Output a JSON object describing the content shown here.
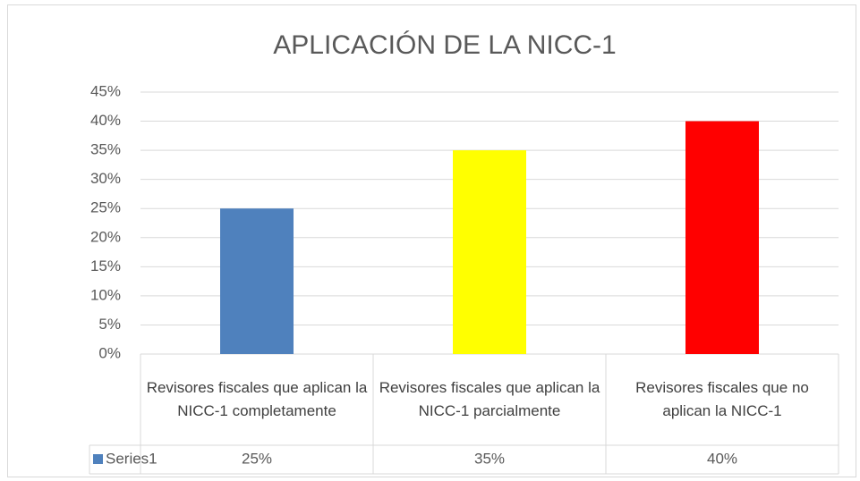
{
  "chart_data": {
    "type": "bar",
    "title": "APLICACIÓN DE LA NICC-1",
    "categories": [
      "Revisores fiscales que aplican la NICC-1 completamente",
      "Revisores fiscales que aplican la NICC-1 parcialmente",
      "Revisores fiscales que no aplican la NICC-1"
    ],
    "series": [
      {
        "name": "Series1",
        "color": "#4f81bd",
        "colors": [
          "#4f81bd",
          "#ffff00",
          "#ff0000"
        ],
        "values": [
          25,
          35,
          40
        ],
        "value_labels": [
          "25%",
          "35%",
          "40%"
        ]
      }
    ],
    "ylim": [
      0,
      45
    ],
    "yticks": [
      {
        "value": 0,
        "label": "0%"
      },
      {
        "value": 5,
        "label": "5%"
      },
      {
        "value": 10,
        "label": "10%"
      },
      {
        "value": 15,
        "label": "15%"
      },
      {
        "value": 20,
        "label": "20%"
      },
      {
        "value": 25,
        "label": "25%"
      },
      {
        "value": 30,
        "label": "30%"
      },
      {
        "value": 35,
        "label": "35%"
      },
      {
        "value": 40,
        "label": "40%"
      },
      {
        "value": 45,
        "label": "45%"
      }
    ],
    "grid": true,
    "data_table": true
  }
}
